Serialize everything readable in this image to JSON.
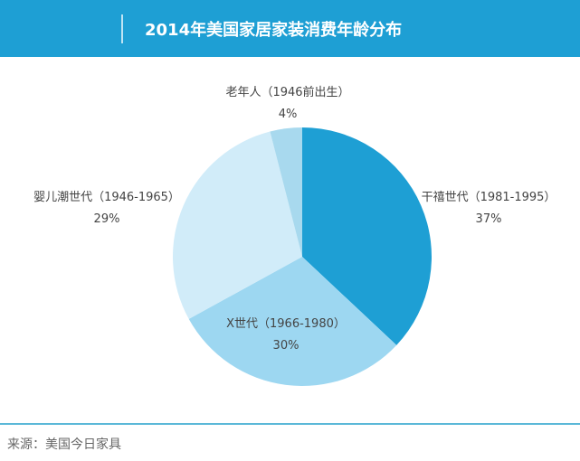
{
  "chart_data": {
    "type": "pie",
    "title": "2014年美国家居家装消费年龄分布",
    "start": "top",
    "direction": "clockwise",
    "slices": [
      {
        "label": "干禧世代（1981-1995）",
        "value": 37,
        "value_label": "37%",
        "color": "#1e9fd4"
      },
      {
        "label": "X世代（1966-1980）",
        "value": 30,
        "value_label": "30%",
        "color": "#9dd7f1"
      },
      {
        "label": "婴儿潮世代（1946-1965）",
        "value": 29,
        "value_label": "29%",
        "color": "#d1ecf9"
      },
      {
        "label": "老年人（1946前出生）",
        "value": 4,
        "value_label": "4%",
        "color": "#a8d9ee"
      }
    ]
  },
  "footer": {
    "source": "来源：美国今日家具"
  }
}
